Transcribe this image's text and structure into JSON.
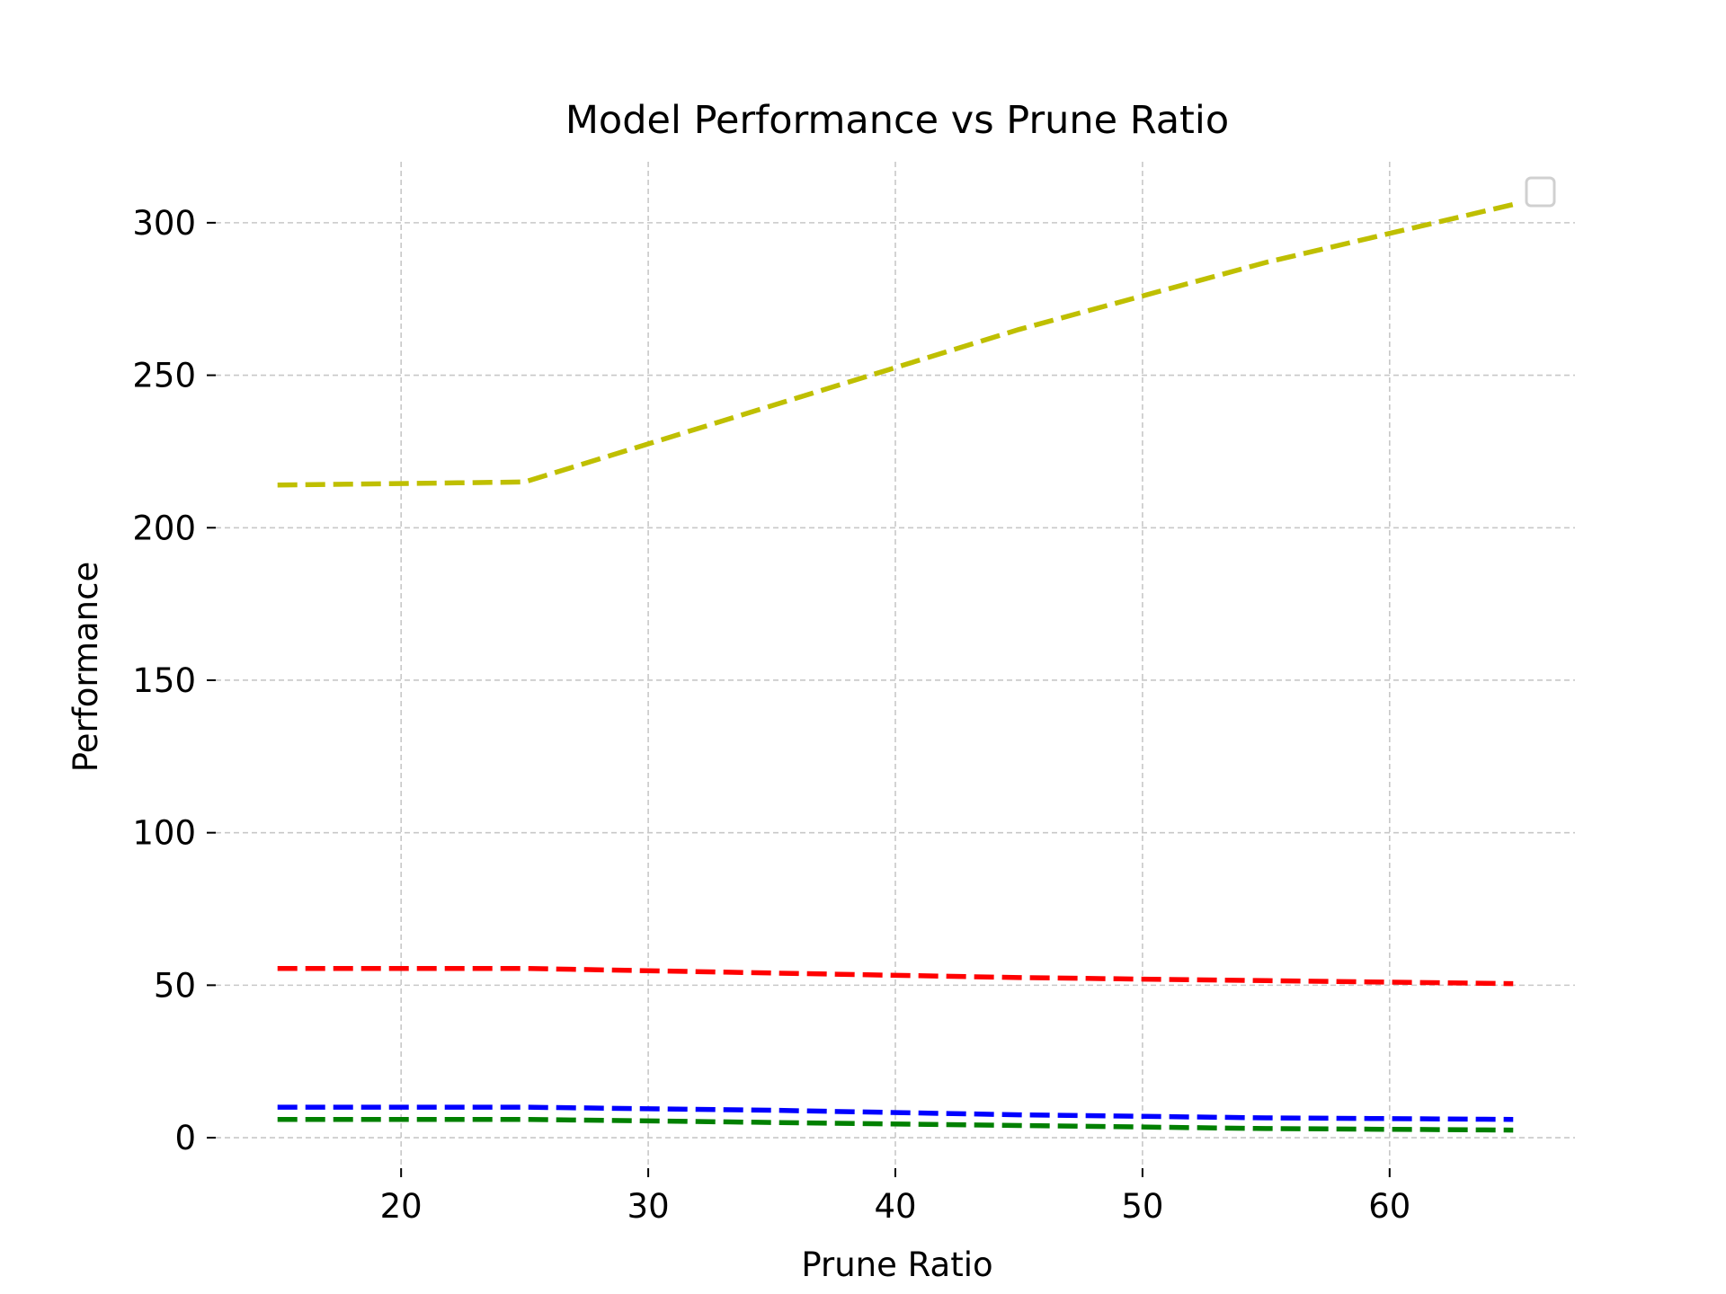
{
  "chart_data": {
    "type": "line",
    "title": "Model Performance vs Prune Ratio",
    "xlabel": "Prune Ratio",
    "ylabel": "Performance",
    "x": [
      15,
      25,
      35,
      45,
      55,
      65
    ],
    "xlim": [
      12.5,
      67.5
    ],
    "ylim": [
      -10,
      320
    ],
    "xticks": [
      20,
      30,
      40,
      50,
      60
    ],
    "yticks": [
      0,
      50,
      100,
      150,
      200,
      250,
      300
    ],
    "grid": true,
    "legend": "top-right (empty box)",
    "line_style": "dashed",
    "series": [
      {
        "color": "#bfbf00",
        "values": [
          214,
          215,
          240,
          265,
          287,
          306
        ]
      },
      {
        "color": "#ff0000",
        "values": [
          55.5,
          55.5,
          54,
          52.5,
          51.5,
          50.5
        ]
      },
      {
        "color": "#0000ff",
        "values": [
          10,
          10,
          9,
          7.5,
          6.5,
          6
        ]
      },
      {
        "color": "#008000",
        "values": [
          6,
          6,
          5,
          4,
          3,
          2.5
        ]
      }
    ]
  }
}
